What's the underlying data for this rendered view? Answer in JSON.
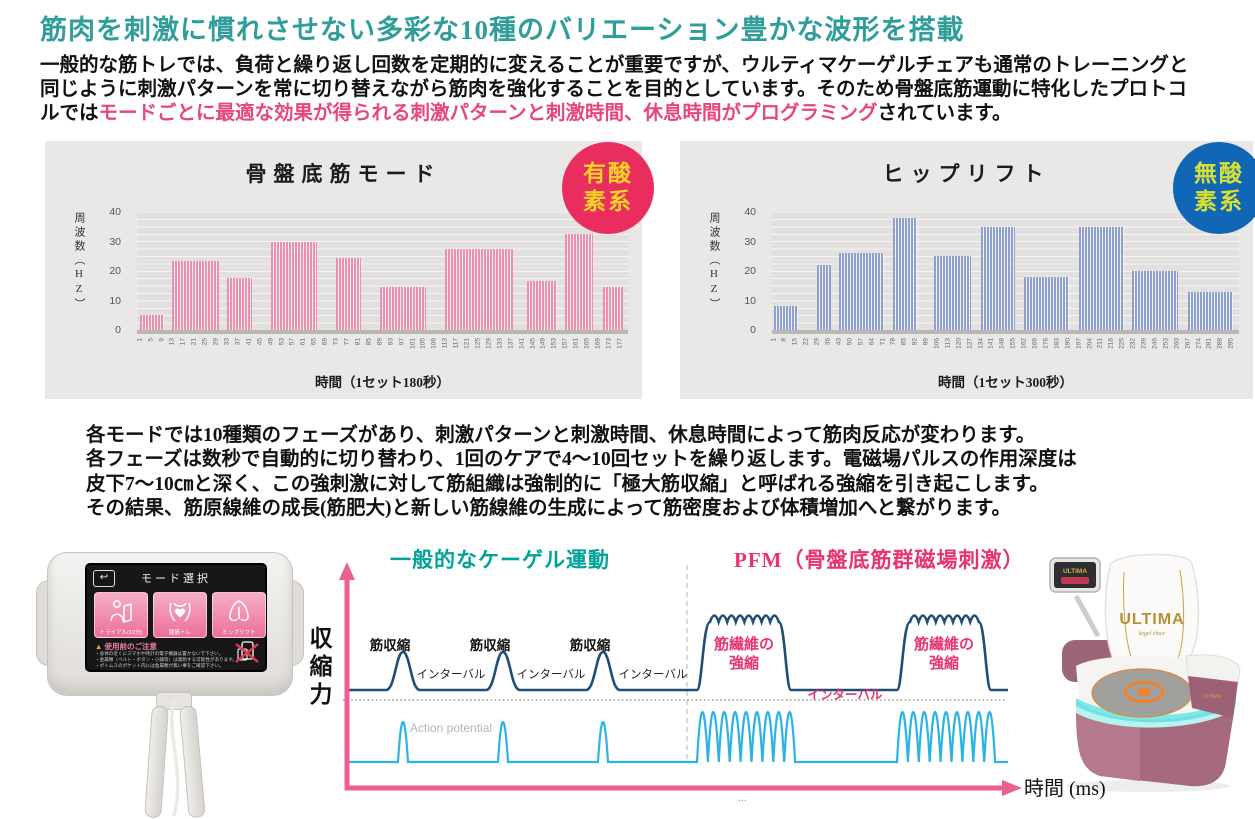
{
  "colors": {
    "heading": "#2f9e9b",
    "highlight": "#e8457c",
    "aerobic_badge": "#e92d5f",
    "aerobic_text": "#f4d326",
    "anaerobic_badge": "#1166b5",
    "anaerobic_text": "#d9e035",
    "bar_pink": "#ef8fae",
    "bar_blue": "#8da0cf",
    "wave_navy": "#1f4e79",
    "wave_cyan": "#2bb3e6",
    "arrow_pink": "#ed5f92",
    "kegel_teal": "#00a29a",
    "pfm_pink": "#e8336e"
  },
  "heading": "筋肉を刺激に慣れさせない多彩な10種のバリエーション豊かな波形を搭載",
  "intro": {
    "line1": "一般的な筋トレでは、負荷と繰り返し回数を定期的に変えることが重要ですが、ウルティマケーゲルチェアも通常のトレーニングと",
    "line2": "同じように刺激パターンを常に切り替えながら筋肉を強化することを目的としています。そのため骨盤底筋運動に特化したプロトコ",
    "line3_prefix": "ルでは",
    "line3_highlight": "モードごとに最適な効果が得られる刺激パターンと刺激時間、休息時間がプログラミング",
    "line3_suffix": "されています。"
  },
  "chart_data": [
    {
      "type": "bar",
      "title": "骨盤底筋モード",
      "badge": "有酸素系",
      "badge_line1": "有酸",
      "badge_line2": "素系",
      "ylabel": "周波数（HZ）",
      "xlabel": "時間（1セット180秒）",
      "ylim": [
        0,
        40
      ],
      "yticks": [
        40,
        30,
        20,
        10,
        0
      ],
      "x_domain": [
        0,
        180
      ],
      "xticks": [
        1,
        5,
        9,
        13,
        17,
        21,
        25,
        29,
        33,
        37,
        41,
        45,
        49,
        53,
        57,
        61,
        65,
        69,
        73,
        77,
        81,
        85,
        89,
        93,
        97,
        101,
        105,
        109,
        113,
        117,
        121,
        125,
        129,
        133,
        137,
        141,
        145,
        149,
        153,
        157,
        161,
        165,
        169,
        173,
        177
      ],
      "bar_color": "#ef8fae",
      "groups": [
        {
          "from": 1,
          "to": 10,
          "hz": 5
        },
        {
          "from": 13,
          "to": 30,
          "hz": 23.5
        },
        {
          "from": 33,
          "to": 42,
          "hz": 17.5
        },
        {
          "from": 49,
          "to": 66,
          "hz": 30
        },
        {
          "from": 73,
          "to": 82,
          "hz": 24.5
        },
        {
          "from": 89,
          "to": 106,
          "hz": 14.5
        },
        {
          "from": 113,
          "to": 138,
          "hz": 27.5
        },
        {
          "from": 143,
          "to": 154,
          "hz": 16.5
        },
        {
          "from": 157,
          "to": 167,
          "hz": 32.5
        },
        {
          "from": 171,
          "to": 178,
          "hz": 14.5
        }
      ]
    },
    {
      "type": "bar",
      "title": "ヒップリフト",
      "badge": "無酸素系",
      "badge_line1": "無酸",
      "badge_line2": "素系",
      "ylabel": "周波数（HZ）",
      "xlabel": "時間（1セット300秒）",
      "ylim": [
        0,
        40
      ],
      "yticks": [
        40,
        30,
        20,
        10,
        0
      ],
      "x_domain": [
        0,
        300
      ],
      "xticks": [
        1,
        8,
        15,
        22,
        29,
        36,
        43,
        50,
        57,
        64,
        71,
        78,
        85,
        92,
        99,
        106,
        113,
        120,
        127,
        134,
        141,
        148,
        155,
        162,
        169,
        176,
        183,
        190,
        197,
        204,
        211,
        218,
        225,
        232,
        239,
        246,
        253,
        260,
        267,
        274,
        281,
        288,
        295
      ],
      "bar_color": "#8da0cf",
      "groups": [
        {
          "from": 1,
          "to": 17,
          "hz": 8
        },
        {
          "from": 29,
          "to": 38,
          "hz": 22
        },
        {
          "from": 43,
          "to": 72,
          "hz": 26
        },
        {
          "from": 78,
          "to": 93,
          "hz": 38
        },
        {
          "from": 104,
          "to": 128,
          "hz": 25
        },
        {
          "from": 134,
          "to": 156,
          "hz": 35
        },
        {
          "from": 162,
          "to": 191,
          "hz": 18
        },
        {
          "from": 197,
          "to": 226,
          "hz": 35
        },
        {
          "from": 231,
          "to": 261,
          "hz": 20
        },
        {
          "from": 267,
          "to": 296,
          "hz": 13
        }
      ]
    }
  ],
  "middle": {
    "lines": [
      "各モードでは10種類のフェーズがあり、刺激パターンと刺激時間、休息時間によって筋肉反応が変わります。",
      "各フェーズは数秒で自動的に切り替わり、1回のケアで4～10回セットを繰り返します。電磁場パルスの作用深度は",
      "皮下7～10㎝と深く、この強刺激に対して筋組織は強制的に「極大筋収縮」と呼ばれる強縮を引き起こします。",
      "その結果、筋原線維の成長(筋肥大)と新しい筋線維の生成によって筋密度および体積増加へと繋がります。"
    ]
  },
  "device": {
    "back_icon": "↩",
    "screen_title": "モード選択",
    "buttons": [
      {
        "label": "トライアル(12分)"
      },
      {
        "label": "膣筋トレ"
      },
      {
        "label": "ヒップリフト"
      }
    ],
    "warning_tri": "▲",
    "warning_title": "使用前のご注意",
    "warnings": [
      "・身体の近くにスマホや時計の電子機器は置かないで下さい。",
      "・金属類（ベルト・ボタン・小銭等）は発熱する可能性があります。",
      "・ボトムスのポケット内には金属類が無い事をご確認下さい。"
    ]
  },
  "diagram": {
    "left_title": "一般的なケーゲル運動",
    "right_title": "PFM（骨盤底筋群磁場刺激）",
    "y_axis_label": "収縮力",
    "contraction_label": "筋収縮",
    "interval_label": "インターバル",
    "tetanus_line1": "筋繊維の",
    "tetanus_line2": "強縮",
    "interval_pink_label": "インターバル",
    "action_potential_label": "Action potential",
    "x_axis_label": "時間 (ms)",
    "ellipsis": "..."
  },
  "chair": {
    "brand": "ULTIMA",
    "sub": "kegel chair",
    "display_brand": "ULTIMA",
    "arm_brand": "ULTIMA"
  }
}
